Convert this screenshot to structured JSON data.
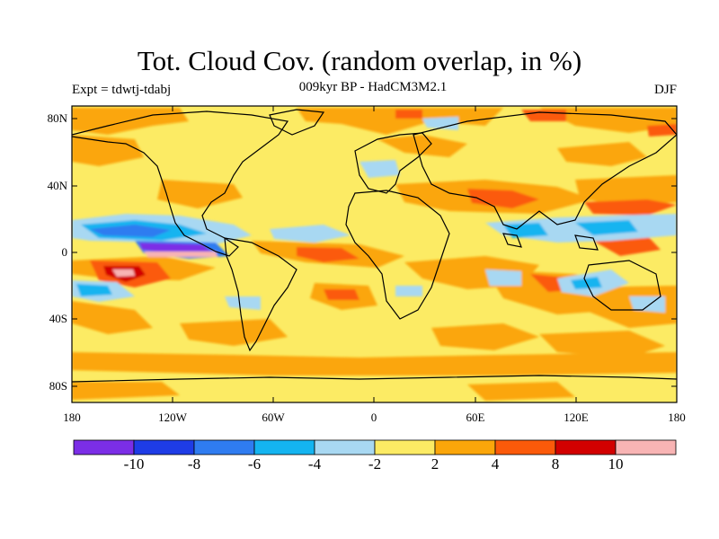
{
  "header": {
    "title": "Tot. Cloud Cov. (random overlap, in %)",
    "subtitle": "009kyr BP - HadCM3M2.1",
    "experiment": "Expt = tdwtj-tdabj",
    "season": "DJF"
  },
  "map": {
    "lat_labels": [
      "80N",
      "40N",
      "0",
      "40S",
      "80S"
    ],
    "lon_labels": [
      "180",
      "120W",
      "60W",
      "0",
      "60E",
      "120E",
      "180"
    ]
  },
  "colorbar": {
    "colors": [
      "#7b2ee6",
      "#1e3ce6",
      "#2f7cf0",
      "#14b4f0",
      "#a8d8f2",
      "#fceb64",
      "#fba60a",
      "#fb5a0a",
      "#d20000",
      "#f8b4b4"
    ],
    "labels": [
      "-10",
      "-8",
      "-6",
      "-4",
      "-2",
      "2",
      "4",
      "8",
      "10"
    ]
  }
}
